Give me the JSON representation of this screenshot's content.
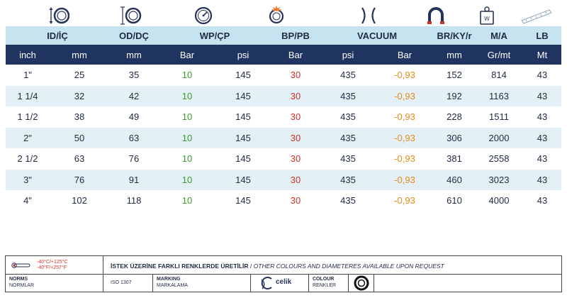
{
  "icons": [
    {
      "name": "inner-diameter-icon"
    },
    {
      "name": "outer-diameter-icon"
    },
    {
      "name": "working-pressure-gauge-icon"
    },
    {
      "name": "burst-pressure-icon"
    },
    {
      "name": "vacuum-icon"
    },
    {
      "name": "bend-radius-icon"
    },
    {
      "name": "weight-icon"
    },
    {
      "name": "length-icon"
    }
  ],
  "header_groups": [
    "ID/İÇ",
    "OD/DÇ",
    "WP/ÇP",
    "BP/PB",
    "VACUUM",
    "BR/KY/r",
    "M/A",
    "LB"
  ],
  "units": [
    "inch",
    "mm",
    "mm",
    "Bar",
    "psi",
    "Bar",
    "psi",
    "Bar",
    "mm",
    "Gr/mt",
    "Mt"
  ],
  "rows": [
    [
      "1\"",
      "25",
      "35",
      "10",
      "145",
      "30",
      "435",
      "-0,93",
      "152",
      "814",
      "43"
    ],
    [
      "1 1/4",
      "32",
      "42",
      "10",
      "145",
      "30",
      "435",
      "-0,93",
      "192",
      "1163",
      "43"
    ],
    [
      "1 1/2",
      "38",
      "49",
      "10",
      "145",
      "30",
      "435",
      "-0,93",
      "228",
      "1511",
      "43"
    ],
    [
      "2\"",
      "50",
      "63",
      "10",
      "145",
      "30",
      "435",
      "-0,93",
      "306",
      "2000",
      "43"
    ],
    [
      "2 1/2",
      "63",
      "76",
      "10",
      "145",
      "30",
      "435",
      "-0,93",
      "381",
      "2558",
      "43"
    ],
    [
      "3\"",
      "76",
      "91",
      "10",
      "145",
      "30",
      "435",
      "-0,93",
      "460",
      "3023",
      "43"
    ],
    [
      "4\"",
      "102",
      "118",
      "10",
      "145",
      "30",
      "435",
      "-0,93",
      "610",
      "4000",
      "43"
    ]
  ],
  "colors": {
    "wp": "#3a9a2c",
    "bp": "#c9322a",
    "vacuum": "#e88a16",
    "header_light": "#c6e4ef",
    "header_dark": "#203461",
    "row_alt": "#e3f1f6"
  },
  "footer": {
    "temp_celsius": "-40°C/+125°C",
    "temp_fahrenheit": "-40°F/+257°F",
    "notice_tr": "İSTEK ÜZERİNE FARKLI RENKLERDE ÜRETİLİR",
    "notice_sep": " / ",
    "notice_en": "OTHER COLOURS AND DIAMETERES AVAILABLE UPON REQUEST",
    "norms_label": "NORMS",
    "norms_label_tr": "NORMLAR",
    "norms_value": "ISO 1307",
    "marking_label": "MARKING",
    "marking_label_tr": "MARKALAMA",
    "brand_text": "celik",
    "colour_label": "COLOUR",
    "colour_label_tr": "RENKLER"
  }
}
